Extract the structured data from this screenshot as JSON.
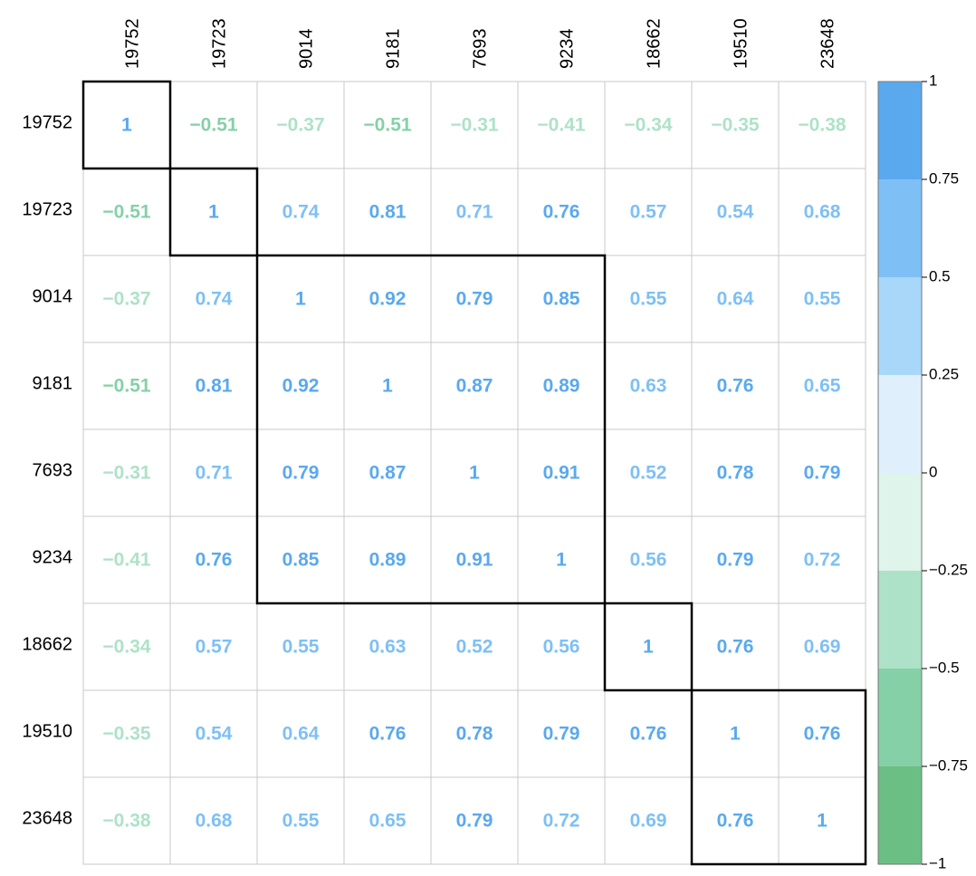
{
  "chart_data": {
    "type": "heatmap",
    "row_labels": [
      "19752",
      "19723",
      "9014",
      "9181",
      "7693",
      "9234",
      "18662",
      "19510",
      "23648"
    ],
    "col_labels": [
      "19752",
      "19723",
      "9014",
      "9181",
      "7693",
      "9234",
      "18662",
      "19510",
      "23648"
    ],
    "values": [
      [
        1,
        -0.51,
        -0.37,
        -0.51,
        -0.31,
        -0.41,
        -0.34,
        -0.35,
        -0.38
      ],
      [
        -0.51,
        1,
        0.74,
        0.81,
        0.71,
        0.76,
        0.57,
        0.54,
        0.68
      ],
      [
        -0.37,
        0.74,
        1,
        0.92,
        0.79,
        0.85,
        0.55,
        0.64,
        0.55
      ],
      [
        -0.51,
        0.81,
        0.92,
        1,
        0.87,
        0.89,
        0.63,
        0.76,
        0.65
      ],
      [
        -0.31,
        0.71,
        0.79,
        0.87,
        1,
        0.91,
        0.52,
        0.78,
        0.79
      ],
      [
        -0.41,
        0.76,
        0.85,
        0.89,
        0.91,
        1,
        0.56,
        0.79,
        0.72
      ],
      [
        -0.34,
        0.57,
        0.55,
        0.63,
        0.52,
        0.56,
        1,
        0.76,
        0.69
      ],
      [
        -0.35,
        0.54,
        0.64,
        0.76,
        0.78,
        0.79,
        0.76,
        1,
        0.76
      ],
      [
        -0.38,
        0.68,
        0.55,
        0.65,
        0.79,
        0.72,
        0.69,
        0.76,
        1
      ]
    ],
    "value_labels": [
      [
        "1",
        "−0.51",
        "−0.37",
        "−0.51",
        "−0.31",
        "−0.41",
        "−0.34",
        "−0.35",
        "−0.38"
      ],
      [
        "−0.51",
        "1",
        "0.74",
        "0.81",
        "0.71",
        "0.76",
        "0.57",
        "0.54",
        "0.68"
      ],
      [
        "−0.37",
        "0.74",
        "1",
        "0.92",
        "0.79",
        "0.85",
        "0.55",
        "0.64",
        "0.55"
      ],
      [
        "−0.51",
        "0.81",
        "0.92",
        "1",
        "0.87",
        "0.89",
        "0.63",
        "0.76",
        "0.65"
      ],
      [
        "−0.31",
        "0.71",
        "0.79",
        "0.87",
        "1",
        "0.91",
        "0.52",
        "0.78",
        "0.79"
      ],
      [
        "−0.41",
        "0.76",
        "0.85",
        "0.89",
        "0.91",
        "1",
        "0.56",
        "0.79",
        "0.72"
      ],
      [
        "−0.34",
        "0.57",
        "0.55",
        "0.63",
        "0.52",
        "0.56",
        "1",
        "0.76",
        "0.69"
      ],
      [
        "−0.35",
        "0.54",
        "0.64",
        "0.76",
        "0.78",
        "0.79",
        "0.76",
        "1",
        "0.76"
      ],
      [
        "−0.38",
        "0.68",
        "0.55",
        "0.65",
        "0.79",
        "0.72",
        "0.69",
        "0.76",
        "1"
      ]
    ],
    "rect_groups": [
      [
        0,
        0
      ],
      [
        1,
        1
      ],
      [
        2,
        5
      ],
      [
        6,
        6
      ],
      [
        7,
        8
      ]
    ],
    "colors": [
      "#6cbf84",
      "#86d0a8",
      "#aee2c8",
      "#dff4ea",
      "#dff0fc",
      "#a9d7f9",
      "#7ec0f5",
      "#5aa9ee"
    ],
    "clim": [
      -1,
      1
    ],
    "cticks": [
      {
        "value": -1,
        "label": "−1"
      },
      {
        "value": -0.75,
        "label": "−0.75"
      },
      {
        "value": -0.5,
        "label": "−0.5"
      },
      {
        "value": -0.25,
        "label": "−0.25"
      },
      0,
      0.25,
      0.5,
      0.75,
      1
    ]
  }
}
